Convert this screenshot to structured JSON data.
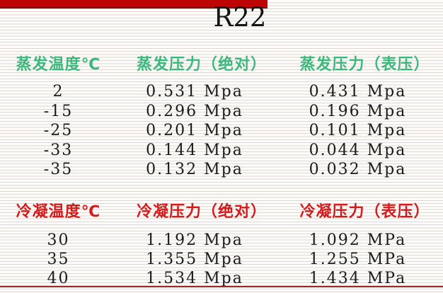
{
  "page": {
    "title": "R22"
  },
  "colors": {
    "top_bar_red": "#bd0503",
    "evaporation_header_green": "#3db87c",
    "condensation_header_red": "#d41a1a",
    "bottom_rule_red": "#9b2a28",
    "body_text": "#1b1b1b"
  },
  "evaporation": {
    "headers": [
      "蒸发温度℃",
      "蒸发压力（绝对）",
      "蒸发压力（表压）"
    ],
    "rows": [
      [
        "2",
        "0.531 Mpa",
        "0.431 Mpa"
      ],
      [
        "-15",
        "0.296 Mpa",
        "0.196 Mpa"
      ],
      [
        "-25",
        "0.201 Mpa",
        "0.101 Mpa"
      ],
      [
        "-33",
        "0.144 Mpa",
        "0.044 Mpa"
      ],
      [
        "-35",
        "0.132 Mpa",
        "0.032 Mpa"
      ]
    ]
  },
  "condensation": {
    "headers": [
      "冷凝温度℃",
      "冷凝压力（绝对）",
      "冷凝压力（表压）"
    ],
    "rows": [
      [
        "30",
        "1.192 Mpa",
        "1.092 MPa"
      ],
      [
        "35",
        "1.355 Mpa",
        "1.255 MPa"
      ],
      [
        "40",
        "1.534 Mpa",
        "1.434 MPa"
      ]
    ]
  }
}
